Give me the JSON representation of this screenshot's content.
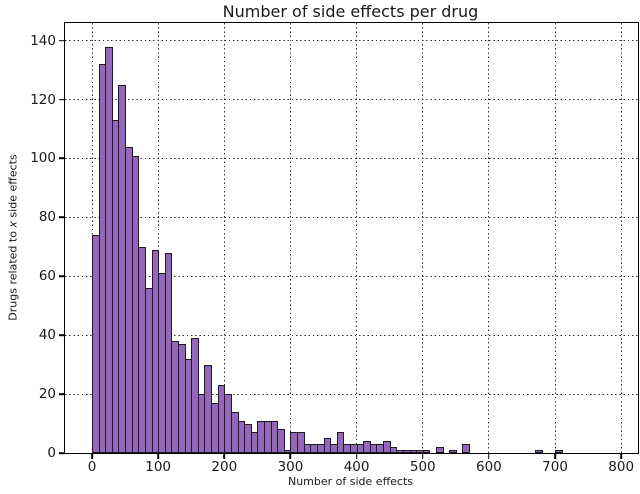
{
  "figure": {
    "title": "Number of side effects per drug",
    "xlabel": "Number of side effects",
    "ylabel_prefix": "Drugs related to ",
    "ylabel_x": "x",
    "ylabel_suffix": " side effects"
  },
  "chart_data": {
    "type": "bar",
    "subtype": "histogram",
    "title": "Number of side effects per drug",
    "xlabel": "Number of side effects",
    "ylabel": "Drugs related to x side effects",
    "bin_start": 0,
    "bin_width": 10,
    "values": [
      74,
      132,
      138,
      113,
      125,
      104,
      101,
      70,
      56,
      69,
      61,
      68,
      38,
      37,
      32,
      39,
      20,
      30,
      17,
      23,
      20,
      14,
      11,
      10,
      7,
      11,
      11,
      11,
      8,
      1,
      7,
      7,
      3,
      3,
      3,
      5,
      3,
      7,
      3,
      3,
      3,
      4,
      3,
      3,
      4,
      2,
      1,
      1,
      1,
      1,
      1,
      0,
      2,
      0,
      1,
      0,
      3,
      0,
      0,
      0,
      0,
      0,
      0,
      0,
      0,
      0,
      0,
      1,
      0,
      0,
      1
    ],
    "xticks": [
      0,
      100,
      200,
      300,
      400,
      500,
      600,
      700,
      800
    ],
    "yticks": [
      0,
      20,
      40,
      60,
      80,
      100,
      120,
      140
    ],
    "xlim": [
      -41,
      826
    ],
    "ylim": [
      0,
      146
    ],
    "grid": "dotted-both-axes",
    "legend": "none",
    "bar_color": "#9467bd",
    "bar_edge_color": "#1c1c1c",
    "grid_color": "#2b2b2b"
  }
}
